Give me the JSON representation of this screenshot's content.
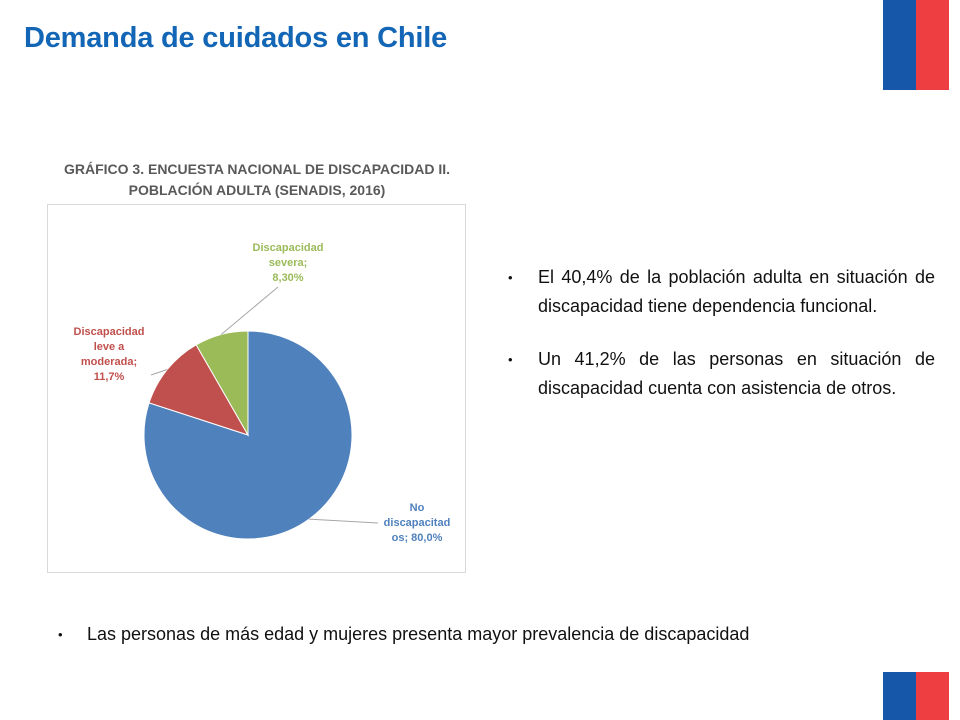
{
  "slide": {
    "title": "Demanda de cuidados en Chile"
  },
  "chart_title_lines": [
    "GRÁFICO 3. ENCUESTA NACIONAL DE DISCAPACIDAD II.",
    "POBLACIÓN ADULTA (SENADIS, 2016)"
  ],
  "chart_data": {
    "type": "pie",
    "title": "GRÁFICO 3. ENCUESTA NACIONAL DE DISCAPACIDAD II. POBLACIÓN ADULTA (SENADIS, 2016)",
    "slices": [
      {
        "name": "No discapacitados",
        "value": 80.0,
        "label": "No\ndiscapacitad\nos; 80,0%",
        "color": "#4f81bd",
        "label_color": "#4f81bd"
      },
      {
        "name": "Discapacidad leve a moderada",
        "value": 11.7,
        "label": "Discapacidad\nleve a\nmoderada;\n11,7%",
        "color": "#c0504d",
        "label_color": "#c0504d"
      },
      {
        "name": "Discapacidad severa",
        "value": 8.3,
        "label": "Discapacidad\nsevera;\n8,30%",
        "color": "#9bbb59",
        "label_color": "#9bbb59"
      }
    ]
  },
  "bullets": [
    "El 40,4% de la población adulta en situación de discapacidad tiene dependencia funcional.",
    "Un 41,2% de las personas en situación de discapacidad cuenta con asistencia de otros."
  ],
  "bottom_bullet": "Las personas de más edad y mujeres presenta mayor prevalencia de discapacidad",
  "bullet_glyph": "•",
  "colors": {
    "title": "#1266b5",
    "flag_blue": "#1657a9",
    "flag_red": "#ef3e42"
  }
}
